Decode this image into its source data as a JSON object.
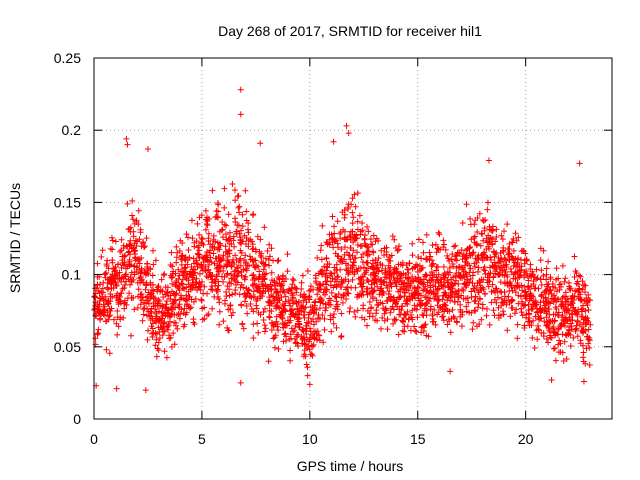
{
  "chart_data": {
    "type": "scatter",
    "title": "Day 268 of 2017, SRMTID for receiver hil1",
    "xlabel": "GPS time / hours",
    "ylabel": "SRMTID / TECUs",
    "xlim": [
      0,
      24
    ],
    "ylim": [
      0,
      0.25
    ],
    "x_ticks": [
      "0",
      "5",
      "10",
      "15",
      "20"
    ],
    "x_tick_values": [
      0,
      5,
      10,
      15,
      20
    ],
    "y_ticks": [
      "0",
      "0.05",
      "0.1",
      "0.15",
      "0.2",
      "0.25"
    ],
    "y_tick_values": [
      0,
      0.05,
      0.1,
      0.15,
      0.2,
      0.25
    ],
    "grid": true,
    "marker": "+",
    "series": [
      {
        "name": "SRMTID",
        "color": "#ff0000",
        "x": [
          0.0,
          0.25,
          0.5,
          0.75,
          1.0,
          1.25,
          1.5,
          1.75,
          2.0,
          2.25,
          2.5,
          2.75,
          3.0,
          3.25,
          3.5,
          3.75,
          4.0,
          4.25,
          4.5,
          4.75,
          5.0,
          5.25,
          5.5,
          5.75,
          6.0,
          6.25,
          6.5,
          6.75,
          7.0,
          7.25,
          7.5,
          7.75,
          8.0,
          8.25,
          8.5,
          8.75,
          9.0,
          9.25,
          9.5,
          9.75,
          10.0,
          10.25,
          10.5,
          10.75,
          11.0,
          11.25,
          11.5,
          11.75,
          12.0,
          12.25,
          12.5,
          12.75,
          13.0,
          13.25,
          13.5,
          13.75,
          14.0,
          14.25,
          14.5,
          14.75,
          15.0,
          15.25,
          15.5,
          15.75,
          16.0,
          16.25,
          16.5,
          16.75,
          17.0,
          17.25,
          17.5,
          17.75,
          18.0,
          18.25,
          18.5,
          18.75,
          19.0,
          19.25,
          19.5,
          19.75,
          20.0,
          20.25,
          20.5,
          20.75,
          21.0,
          21.25,
          21.5,
          21.75,
          22.0,
          22.25,
          22.5,
          22.75
        ],
        "values": [
          0.078,
          0.083,
          0.085,
          0.092,
          0.089,
          0.098,
          0.102,
          0.11,
          0.105,
          0.095,
          0.085,
          0.075,
          0.07,
          0.075,
          0.082,
          0.09,
          0.095,
          0.1,
          0.098,
          0.102,
          0.11,
          0.115,
          0.112,
          0.108,
          0.11,
          0.115,
          0.118,
          0.112,
          0.105,
          0.1,
          0.095,
          0.09,
          0.085,
          0.08,
          0.078,
          0.076,
          0.075,
          0.072,
          0.07,
          0.068,
          0.072,
          0.08,
          0.09,
          0.095,
          0.1,
          0.105,
          0.11,
          0.115,
          0.112,
          0.108,
          0.104,
          0.1,
          0.098,
          0.096,
          0.094,
          0.092,
          0.09,
          0.088,
          0.086,
          0.088,
          0.09,
          0.092,
          0.094,
          0.096,
          0.095,
          0.092,
          0.09,
          0.095,
          0.1,
          0.105,
          0.1,
          0.102,
          0.105,
          0.108,
          0.1,
          0.095,
          0.098,
          0.1,
          0.096,
          0.092,
          0.088,
          0.085,
          0.082,
          0.08,
          0.078,
          0.076,
          0.074,
          0.072,
          0.075,
          0.08,
          0.072,
          0.065
        ],
        "spread": [
          0.03,
          0.03,
          0.032,
          0.03,
          0.03,
          0.035,
          0.038,
          0.04,
          0.035,
          0.035,
          0.03,
          0.03,
          0.03,
          0.03,
          0.03,
          0.03,
          0.032,
          0.035,
          0.035,
          0.035,
          0.038,
          0.04,
          0.04,
          0.04,
          0.045,
          0.045,
          0.045,
          0.05,
          0.045,
          0.04,
          0.04,
          0.038,
          0.035,
          0.032,
          0.03,
          0.03,
          0.03,
          0.03,
          0.03,
          0.03,
          0.03,
          0.032,
          0.035,
          0.04,
          0.042,
          0.042,
          0.045,
          0.045,
          0.04,
          0.04,
          0.038,
          0.035,
          0.035,
          0.032,
          0.03,
          0.03,
          0.03,
          0.03,
          0.032,
          0.032,
          0.035,
          0.035,
          0.035,
          0.035,
          0.035,
          0.035,
          0.035,
          0.035,
          0.035,
          0.035,
          0.035,
          0.038,
          0.038,
          0.04,
          0.035,
          0.032,
          0.035,
          0.035,
          0.032,
          0.03,
          0.03,
          0.03,
          0.03,
          0.03,
          0.03,
          0.03,
          0.03,
          0.03,
          0.03,
          0.035,
          0.035,
          0.03
        ],
        "points_per_bin": 32,
        "outliers": [
          {
            "x": 6.8,
            "y": 0.228
          },
          {
            "x": 6.8,
            "y": 0.211
          },
          {
            "x": 1.5,
            "y": 0.194
          },
          {
            "x": 1.55,
            "y": 0.19
          },
          {
            "x": 2.5,
            "y": 0.187
          },
          {
            "x": 7.7,
            "y": 0.191
          },
          {
            "x": 11.7,
            "y": 0.203
          },
          {
            "x": 11.8,
            "y": 0.198
          },
          {
            "x": 11.1,
            "y": 0.192
          },
          {
            "x": 18.3,
            "y": 0.179
          },
          {
            "x": 22.5,
            "y": 0.177
          },
          {
            "x": 1.05,
            "y": 0.021
          },
          {
            "x": 2.4,
            "y": 0.02
          },
          {
            "x": 10.0,
            "y": 0.024
          },
          {
            "x": 16.5,
            "y": 0.033
          },
          {
            "x": 0.1,
            "y": 0.023
          },
          {
            "x": 6.8,
            "y": 0.025
          },
          {
            "x": 22.7,
            "y": 0.026
          },
          {
            "x": 21.2,
            "y": 0.027
          },
          {
            "x": 9.9,
            "y": 0.03
          }
        ]
      }
    ]
  }
}
